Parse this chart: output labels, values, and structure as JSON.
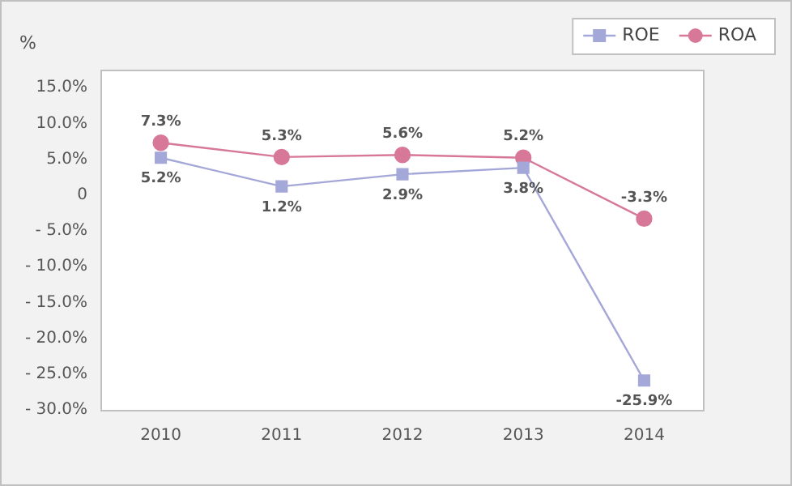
{
  "chart_data": {
    "type": "line",
    "ylabel": "%",
    "categories": [
      "2010",
      "2011",
      "2012",
      "2013",
      "2014"
    ],
    "series": [
      {
        "name": "ROE",
        "color": "#a4a8d8",
        "marker": "square",
        "values": [
          5.2,
          1.2,
          2.9,
          3.8,
          -25.9
        ],
        "value_labels": [
          "5.2%",
          "1.2%",
          "2.9%",
          "3.8%",
          "-25.9%"
        ]
      },
      {
        "name": "ROA",
        "color": "#d87898",
        "marker": "circle",
        "values": [
          7.3,
          5.3,
          5.6,
          5.2,
          -3.3
        ],
        "value_labels": [
          "7.3%",
          "5.3%",
          "5.6%",
          "5.2%",
          "-3.3%"
        ]
      }
    ],
    "ylim": [
      -30,
      17.5
    ],
    "yticks": [
      {
        "value": 15,
        "label": "15.0%"
      },
      {
        "value": 10,
        "label": "10.0%"
      },
      {
        "value": 5,
        "label": "5.0%"
      },
      {
        "value": 0,
        "label": "0"
      },
      {
        "value": -5,
        "label": "- 5.0%"
      },
      {
        "value": -10,
        "label": "- 10.0%"
      },
      {
        "value": -15,
        "label": "- 15.0%"
      },
      {
        "value": -20,
        "label": "- 20.0%"
      },
      {
        "value": -25,
        "label": "- 25.0%"
      },
      {
        "value": -30,
        "label": "- 30.0%"
      }
    ],
    "legend": "top right",
    "grid": false
  }
}
